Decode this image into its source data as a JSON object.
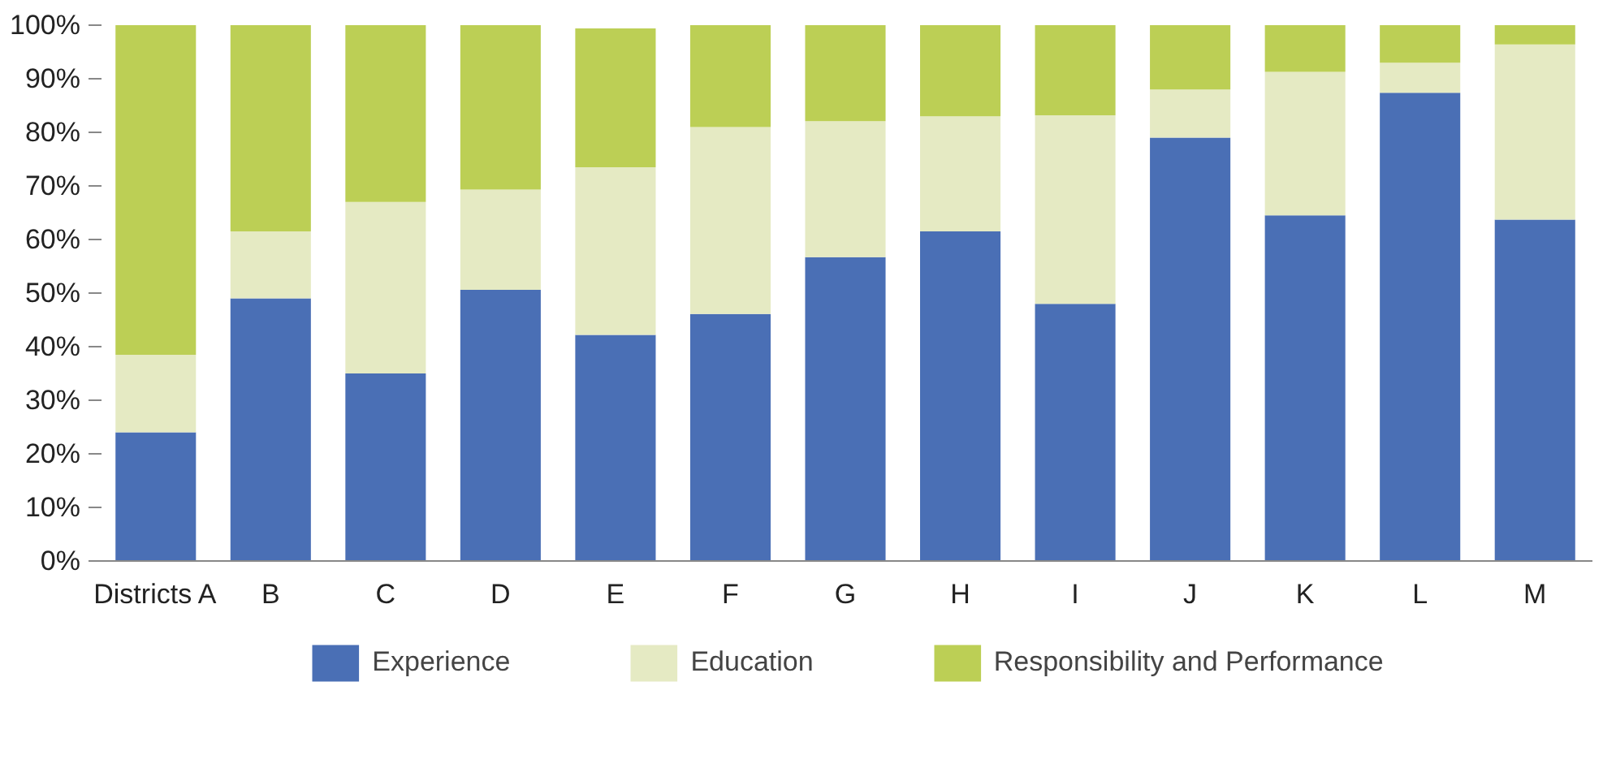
{
  "chart_data": {
    "type": "bar",
    "stacked": true,
    "categories": [
      "Districts A",
      "B",
      "C",
      "D",
      "E",
      "F",
      "G",
      "H",
      "I",
      "J",
      "K",
      "L",
      "M"
    ],
    "series": [
      {
        "name": "Experience",
        "color": "#4a6fb5",
        "values": [
          24,
          49,
          35,
          50.6,
          42.2,
          46.1,
          56.7,
          61.5,
          48,
          79,
          64.5,
          87.4,
          63.7
        ]
      },
      {
        "name": "Education",
        "color": "#e5eac3",
        "values": [
          14.5,
          12.5,
          32,
          18.7,
          31.3,
          34.9,
          25.4,
          21.5,
          35.2,
          9,
          26.8,
          5.6,
          32.7
        ]
      },
      {
        "name": "Responsibility and Performance",
        "color": "#bccf55",
        "values": [
          61.5,
          38.5,
          33,
          30.7,
          25.9,
          19,
          17.9,
          17,
          16.8,
          12,
          8.7,
          7,
          3.6
        ]
      }
    ],
    "ylim": [
      0,
      100
    ],
    "yticks": [
      {
        "value": 0,
        "label": "0%"
      },
      {
        "value": 10,
        "label": "10%"
      },
      {
        "value": 20,
        "label": "20%"
      },
      {
        "value": 30,
        "label": "30%"
      },
      {
        "value": 40,
        "label": "40%"
      },
      {
        "value": 50,
        "label": "50%"
      },
      {
        "value": 60,
        "label": "60%"
      },
      {
        "value": 70,
        "label": "70%"
      },
      {
        "value": 80,
        "label": "80%"
      },
      {
        "value": 90,
        "label": "90%"
      },
      {
        "value": 100,
        "label": "100%"
      }
    ],
    "grid": false,
    "legend": "bottom"
  }
}
